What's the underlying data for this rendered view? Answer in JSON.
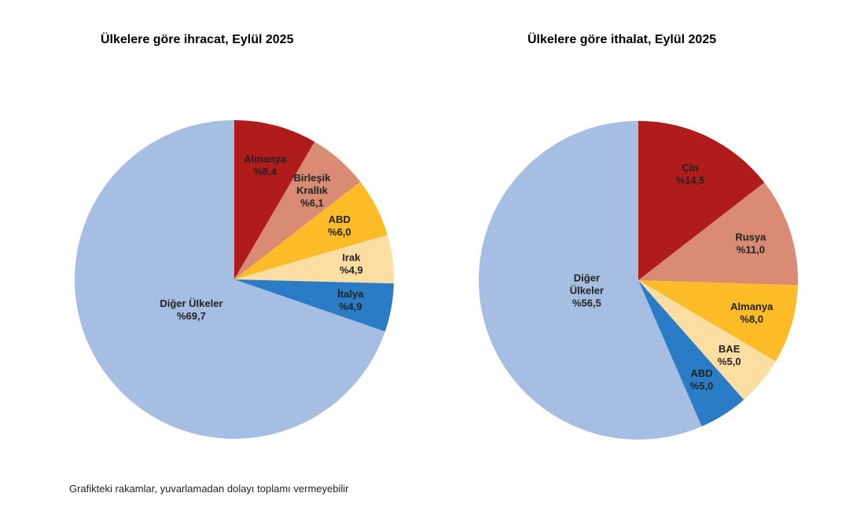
{
  "chart_data": [
    {
      "type": "pie",
      "title": "Ülkelere göre ihracat, Eylül 2025",
      "unit_prefix": "%",
      "slices": [
        {
          "label": [
            "Almanya"
          ],
          "value": 8.4,
          "value_text": "%8,4",
          "color": "#B01C1C"
        },
        {
          "label": [
            "Birleşik",
            "Krallık"
          ],
          "value": 6.1,
          "value_text": "%6,1",
          "color": "#D98B74"
        },
        {
          "label": [
            "ABD"
          ],
          "value": 6.0,
          "value_text": "%6,0",
          "color": "#FBBC28"
        },
        {
          "label": [
            "Irak"
          ],
          "value": 4.9,
          "value_text": "%4,9",
          "color": "#FCDDA2"
        },
        {
          "label": [
            "İtalya"
          ],
          "value": 4.9,
          "value_text": "%4,9",
          "color": "#2B7CC6"
        },
        {
          "label": [
            "Diğer Ülkeler"
          ],
          "value": 69.7,
          "value_text": "%69,7",
          "color": "#A6BEE2"
        }
      ]
    },
    {
      "type": "pie",
      "title": "Ülkelere göre ithalat, Eylül 2025",
      "unit_prefix": "%",
      "slices": [
        {
          "label": [
            "Çin"
          ],
          "value": 14.5,
          "value_text": "%14,5",
          "color": "#B01C1C"
        },
        {
          "label": [
            "Rusya"
          ],
          "value": 11.0,
          "value_text": "%11,0",
          "color": "#D98B74"
        },
        {
          "label": [
            "Almanya"
          ],
          "value": 8.0,
          "value_text": "%8,0",
          "color": "#FBBC28"
        },
        {
          "label": [
            "BAE"
          ],
          "value": 5.0,
          "value_text": "%5,0",
          "color": "#FCDDA2"
        },
        {
          "label": [
            "ABD"
          ],
          "value": 5.0,
          "value_text": "%5,0",
          "color": "#2B7CC6"
        },
        {
          "label": [
            "Diğer",
            "Ülkeler"
          ],
          "value": 56.5,
          "value_text": "%56,5",
          "color": "#A6BEE2"
        }
      ]
    }
  ],
  "footnote": "Grafikteki rakamlar, yuvarlamadan dolayı toplamı vermeyebilir"
}
